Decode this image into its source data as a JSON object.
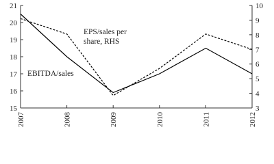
{
  "chart_data": {
    "type": "line",
    "categories": [
      "2007",
      "2008",
      "2009",
      "2010",
      "2011",
      "2012"
    ],
    "series": [
      {
        "name": "EBITDA/sales",
        "color": "#000000",
        "dash": "solid",
        "values": [
          20.5,
          18,
          15.9,
          17,
          18.5,
          17
        ]
      },
      {
        "name": "EPS/sales per share, RHS",
        "color": "#000000",
        "dash": "dashed",
        "axis": "y2",
        "values": [
          9.1,
          8.05,
          3.85,
          5.7,
          8.05,
          7
        ]
      }
    ],
    "ylim": [
      15,
      21
    ],
    "yticks": [
      15,
      16,
      17,
      18,
      19,
      20,
      21
    ],
    "y2lim": [
      3,
      10
    ],
    "y2ticks": [
      3,
      4,
      5,
      6,
      7,
      8,
      9,
      10
    ]
  }
}
